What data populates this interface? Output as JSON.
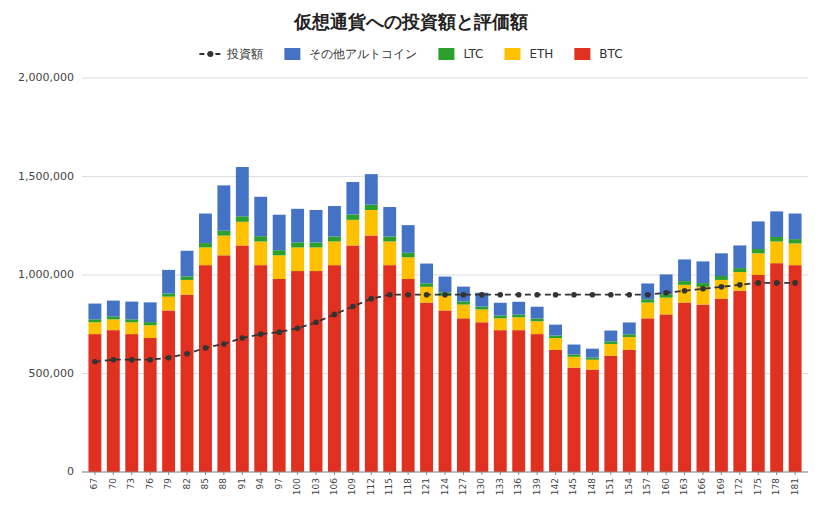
{
  "chart_data": {
    "type": "bar",
    "stacked": true,
    "title": "仮想通貨への投資額と評価額",
    "legend": "top",
    "grid": true,
    "categories": [
      "67",
      "70",
      "73",
      "76",
      "79",
      "82",
      "85",
      "88",
      "91",
      "94",
      "97",
      "100",
      "103",
      "106",
      "109",
      "112",
      "115",
      "118",
      "121",
      "124",
      "127",
      "130",
      "133",
      "136",
      "139",
      "142",
      "145",
      "148",
      "151",
      "154",
      "157",
      "160",
      "163",
      "166",
      "169",
      "172",
      "175",
      "178",
      "181"
    ],
    "ylim": [
      0,
      2000000
    ],
    "yticks": [
      0,
      {
        "value": 500000,
        "label": "500,000"
      },
      {
        "value": 1000000,
        "label": "1,000,000"
      },
      {
        "value": 1500000,
        "label": "1,500,000"
      },
      {
        "value": 2000000,
        "label": "2,000,000"
      }
    ],
    "series": [
      {
        "name": "BTC",
        "type": "bar",
        "color": "#E03020",
        "values": [
          700000,
          720000,
          700000,
          680000,
          820000,
          900000,
          1050000,
          1100000,
          1150000,
          1050000,
          980000,
          1020000,
          1020000,
          1050000,
          1150000,
          1200000,
          1050000,
          980000,
          860000,
          820000,
          780000,
          760000,
          720000,
          720000,
          700000,
          620000,
          530000,
          520000,
          590000,
          620000,
          780000,
          800000,
          860000,
          850000,
          880000,
          920000,
          1000000,
          1060000,
          1050000
        ]
      },
      {
        "name": "ETH",
        "type": "bar",
        "color": "#FFC000",
        "values": [
          60000,
          55000,
          60000,
          65000,
          70000,
          75000,
          90000,
          100000,
          120000,
          120000,
          120000,
          120000,
          120000,
          120000,
          130000,
          130000,
          120000,
          110000,
          80000,
          75000,
          70000,
          65000,
          60000,
          65000,
          65000,
          60000,
          55000,
          50000,
          60000,
          65000,
          80000,
          85000,
          90000,
          90000,
          95000,
          95000,
          110000,
          110000,
          110000
        ]
      },
      {
        "name": "LTC",
        "type": "bar",
        "color": "#2CA02C",
        "values": [
          15000,
          15000,
          15000,
          16000,
          16000,
          18000,
          22000,
          25000,
          28000,
          27000,
          26000,
          26000,
          25000,
          25000,
          27000,
          27000,
          25000,
          23000,
          18000,
          17000,
          16000,
          15000,
          14000,
          14000,
          14000,
          13000,
          12000,
          11000,
          13000,
          14000,
          17000,
          18000,
          19000,
          19000,
          20000,
          20000,
          22000,
          23000,
          22000
        ]
      },
      {
        "name": "その他アルトコイン",
        "type": "bar",
        "color": "#4472C4",
        "values": [
          80000,
          80000,
          90000,
          100000,
          120000,
          130000,
          150000,
          230000,
          250000,
          200000,
          180000,
          170000,
          165000,
          155000,
          165000,
          155000,
          150000,
          140000,
          100000,
          80000,
          75000,
          70000,
          65000,
          65000,
          60000,
          55000,
          50000,
          45000,
          55000,
          60000,
          80000,
          100000,
          110000,
          110000,
          115000,
          115000,
          140000,
          130000,
          130000
        ]
      },
      {
        "name": "投資額",
        "type": "line",
        "color": "#333333",
        "line_style": "dashed",
        "marker": "circle",
        "values": [
          560000,
          570000,
          570000,
          570000,
          580000,
          600000,
          630000,
          650000,
          680000,
          700000,
          710000,
          730000,
          760000,
          800000,
          840000,
          880000,
          900000,
          900000,
          900000,
          900000,
          900000,
          900000,
          900000,
          900000,
          900000,
          900000,
          900000,
          900000,
          900000,
          900000,
          900000,
          910000,
          920000,
          930000,
          940000,
          950000,
          960000,
          960000,
          960000
        ]
      }
    ]
  }
}
